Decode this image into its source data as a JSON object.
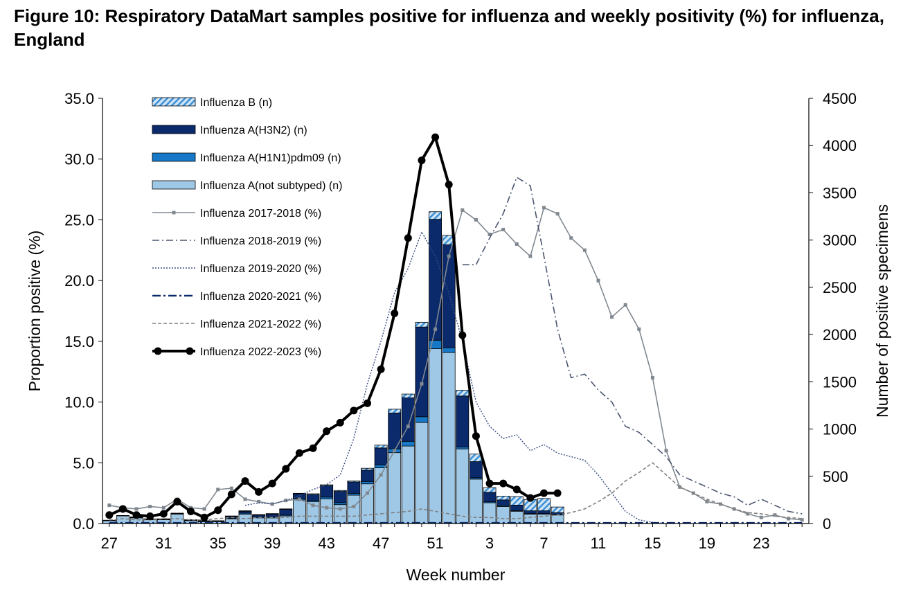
{
  "figure": {
    "title": "Figure 10: Respiratory DataMart samples positive for influenza and weekly positivity (%) for influenza, England"
  },
  "chart_data": {
    "type": "bar",
    "title": "Figure 10: Respiratory DataMart samples positive for influenza and weekly positivity (%) for influenza, England",
    "xlabel": "Week number",
    "ylabel_left": "Proportion positive (%)",
    "ylabel_right": "Number of positive specimens",
    "ylim_left": [
      0,
      35
    ],
    "ylim_right": [
      0,
      4500
    ],
    "yticks_left": [
      "0.0",
      "5.0",
      "10.0",
      "15.0",
      "20.0",
      "25.0",
      "30.0",
      "35.0"
    ],
    "yticks_right": [
      "0",
      "500",
      "1000",
      "1500",
      "2000",
      "2500",
      "3000",
      "3500",
      "4000",
      "4500"
    ],
    "x_tick_labels": [
      "27",
      "31",
      "35",
      "39",
      "43",
      "47",
      "51",
      "3",
      "7",
      "11",
      "15",
      "19",
      "23"
    ],
    "weeks": [
      "27",
      "28",
      "29",
      "30",
      "31",
      "32",
      "33",
      "34",
      "35",
      "36",
      "37",
      "38",
      "39",
      "40",
      "41",
      "42",
      "43",
      "44",
      "45",
      "46",
      "47",
      "48",
      "49",
      "50",
      "51",
      "52",
      "1",
      "2",
      "3",
      "4",
      "5",
      "6",
      "7",
      "8",
      "9",
      "10",
      "11",
      "12",
      "13",
      "14",
      "15",
      "16",
      "17",
      "18",
      "19",
      "20",
      "21",
      "22",
      "23",
      "24",
      "25",
      "26"
    ],
    "legend_position": "top-left",
    "grid": false,
    "colors": {
      "flu_b": "#9ecae1",
      "flu_b_stripe": "#1f6fb5",
      "h3n2": "#0b2a6b",
      "h1n1": "#1878c8",
      "a_not_subtyped": "#9fc8e6",
      "s2017": "#808890",
      "s2018": "#4a5670",
      "s2019": "#3a4d80",
      "s2020": "#0b2a6b",
      "s2021": "#808080",
      "s2022": "#000000"
    },
    "bar_series": [
      {
        "name": "Influenza A(not subtyped) (n)",
        "values": [
          30,
          80,
          60,
          40,
          40,
          100,
          30,
          20,
          20,
          50,
          100,
          60,
          60,
          80,
          250,
          230,
          260,
          200,
          300,
          420,
          590,
          750,
          820,
          1070,
          1850,
          1810,
          790,
          470,
          220,
          180,
          130,
          100,
          100,
          90
        ]
      },
      {
        "name": "Influenza A(H1N1)pdm09 (n)",
        "values": [
          5,
          5,
          5,
          5,
          5,
          5,
          5,
          5,
          5,
          5,
          10,
          10,
          10,
          10,
          15,
          15,
          20,
          20,
          20,
          25,
          30,
          40,
          50,
          60,
          90,
          50,
          20,
          15,
          10,
          10,
          5,
          5,
          5,
          5
        ]
      },
      {
        "name": "Influenza A(H3N2) (n)",
        "values": [
          0,
          0,
          5,
          5,
          5,
          5,
          5,
          5,
          5,
          20,
          20,
          20,
          30,
          60,
          50,
          60,
          120,
          120,
          120,
          120,
          180,
          380,
          460,
          950,
          1280,
          1090,
          540,
          170,
          100,
          60,
          60,
          30,
          30,
          20
        ]
      },
      {
        "name": "Influenza B (n)",
        "values": [
          0,
          0,
          0,
          0,
          0,
          0,
          0,
          0,
          0,
          5,
          5,
          5,
          5,
          5,
          5,
          10,
          10,
          10,
          10,
          20,
          30,
          40,
          40,
          50,
          80,
          100,
          60,
          80,
          50,
          40,
          90,
          120,
          130,
          60
        ]
      }
    ],
    "line_series": [
      {
        "name": "Influenza 2017-2018 (%)",
        "start": 0,
        "values": [
          1.5,
          1.3,
          1.2,
          1.4,
          1.3,
          2.0,
          1.3,
          1.2,
          2.8,
          2.9,
          2.0,
          1.8,
          1.6,
          1.9,
          2.0,
          1.5,
          1.3,
          1.2,
          1.4,
          2.5,
          4.0,
          6.0,
          8.0,
          11.5,
          16.0,
          22.0,
          25.8,
          25.0,
          23.8,
          24.2,
          23.0,
          22.0,
          26.0,
          25.5,
          23.5,
          22.5,
          20.0,
          17.0,
          18.0,
          16.0,
          12.0,
          6.0,
          3.0,
          2.5,
          1.8,
          1.6,
          1.2,
          0.8,
          0.5,
          0.7,
          0.4,
          0.3
        ]
      },
      {
        "name": "Influenza 2018-2019 (%)",
        "start": 26,
        "values": [
          21.3,
          21.3,
          23.5,
          25.5,
          28.5,
          27.8,
          22.0,
          16.0,
          12.0,
          12.3,
          11.0,
          10.0,
          8.0,
          7.5,
          6.5,
          5.5,
          4.0,
          3.5,
          3.0,
          2.5,
          2.2,
          1.5,
          2.0,
          1.5,
          1.0,
          0.8
        ]
      },
      {
        "name": "Influenza 2019-2020 (%)",
        "start": 10,
        "values": [
          1.5,
          1.7,
          1.6,
          1.9,
          2.3,
          2.8,
          3.2,
          4.0,
          7.0,
          11.5,
          15.0,
          19.0,
          21.0,
          24.0,
          22.0,
          19.0,
          15.0,
          10.0,
          8.0,
          7.0,
          7.3,
          6.0,
          6.5,
          5.8,
          5.5,
          5.2,
          4.0,
          2.5,
          1.0,
          0.3,
          0.1,
          0.0
        ]
      },
      {
        "name": "Influenza 2020-2021 (%)",
        "start": 0,
        "values": [
          0.05,
          0.05,
          0.05,
          0.05,
          0.05,
          0.05,
          0.05,
          0.05,
          0.05,
          0.05,
          0.05,
          0.05,
          0.05,
          0.05,
          0.05,
          0.05,
          0.05,
          0.05,
          0.05,
          0.05,
          0.05,
          0.05,
          0.05,
          0.05,
          0.05,
          0.05,
          0.05,
          0.05,
          0.05,
          0.05,
          0.05,
          0.05,
          0.05,
          0.05,
          0.05,
          0.05,
          0.05,
          0.05,
          0.05,
          0.05,
          0.05,
          0.05,
          0.05,
          0.05,
          0.05,
          0.05,
          0.05,
          0.05,
          0.05,
          0.05,
          0.05,
          0.05
        ]
      },
      {
        "name": "Influenza 2021-2022 (%)",
        "start": 0,
        "values": [
          0.3,
          0.4,
          0.3,
          0.3,
          0.4,
          0.4,
          0.3,
          0.3,
          0.4,
          0.5,
          0.4,
          0.5,
          0.5,
          0.5,
          0.6,
          0.6,
          0.6,
          0.6,
          0.6,
          0.7,
          0.8,
          0.9,
          1.0,
          1.2,
          1.0,
          0.8,
          0.6,
          0.5,
          0.5,
          0.4,
          0.4,
          0.5,
          0.6,
          0.7,
          0.9,
          1.2,
          1.8,
          2.5,
          3.5,
          4.2,
          5.0,
          4.0,
          3.0,
          2.5,
          2.0,
          1.6,
          1.2,
          0.9,
          0.8,
          0.6,
          0.5,
          0.4
        ]
      },
      {
        "name": "Influenza 2022-2023 (%)",
        "start": 0,
        "values": [
          0.7,
          1.2,
          0.7,
          0.6,
          0.8,
          1.8,
          1.0,
          0.5,
          1.1,
          2.4,
          3.5,
          2.6,
          3.3,
          4.5,
          5.8,
          6.2,
          7.6,
          8.3,
          9.3,
          9.9,
          12.7,
          17.3,
          23.5,
          29.9,
          31.8,
          27.9,
          15.5,
          7.2,
          3.3,
          3.3,
          2.8,
          2.1,
          2.5,
          2.5
        ]
      }
    ]
  }
}
